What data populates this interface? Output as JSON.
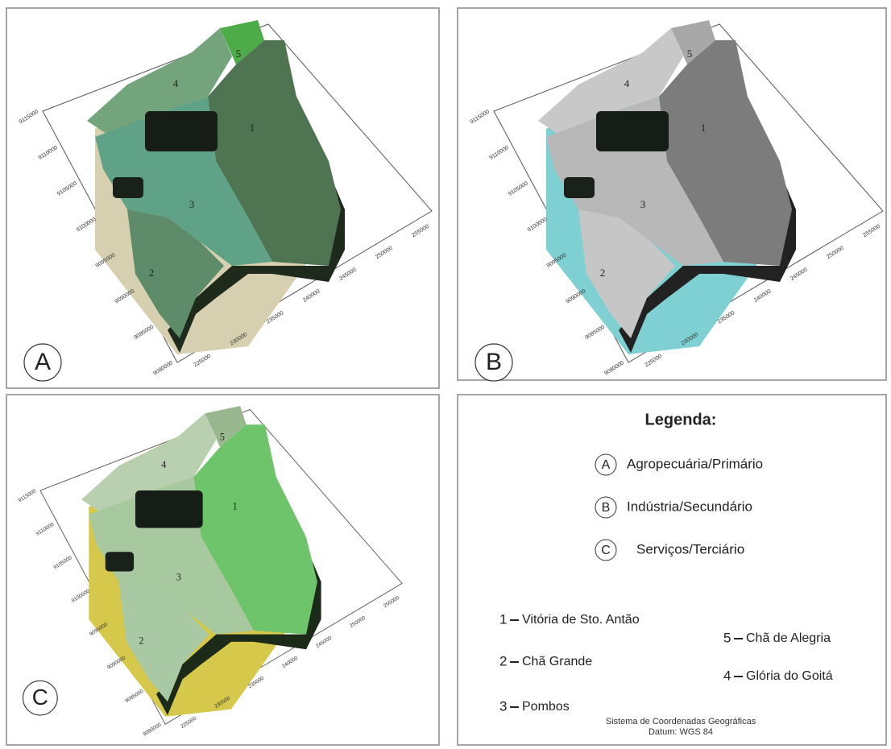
{
  "panels": [
    {
      "label": "A"
    },
    {
      "label": "B"
    },
    {
      "label": "C"
    }
  ],
  "axes": {
    "x_ticks": [
      "225000",
      "230000",
      "235000",
      "240000",
      "245000",
      "250000",
      "255000"
    ],
    "y_ticks": [
      "9080000",
      "9085000",
      "9090000",
      "9095000",
      "9100000",
      "9105000",
      "9110000",
      "9115000"
    ]
  },
  "legend": {
    "title": "Legenda:",
    "sectors": [
      {
        "letter": "A",
        "name": "Agropecuária/Primário"
      },
      {
        "letter": "B",
        "name": "Indústria/Secundário"
      },
      {
        "letter": "C",
        "name": "Serviços/Terciário"
      }
    ],
    "municipalities": [
      {
        "number": "1",
        "name": "Vitória de Sto. Antão"
      },
      {
        "number": "2",
        "name": "Chã Grande"
      },
      {
        "number": "3",
        "name": "Pombos"
      },
      {
        "number": "4",
        "name": "Glória do Goitá"
      },
      {
        "number": "5",
        "name": "Chã de Alegria"
      }
    ],
    "footer": [
      "Sistema de Coordenadas Geográficas",
      "Datum: WGS 84"
    ]
  }
}
